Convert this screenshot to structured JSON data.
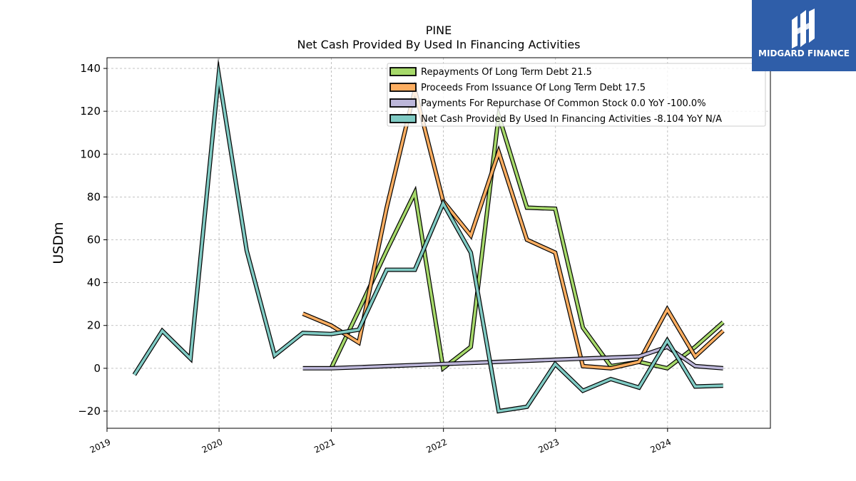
{
  "chart_data": {
    "type": "line",
    "title": "PINE",
    "subtitle": "Net Cash Provided By Used In Financing Activities",
    "xlabel": "",
    "ylabel": "USDm",
    "xlim": [
      "2019-01-01",
      "2024-12-01"
    ],
    "ylim": [
      -28,
      145
    ],
    "x_ticks": [
      "2019",
      "2020",
      "2021",
      "2022",
      "2023",
      "2024"
    ],
    "y_ticks": [
      -20,
      0,
      20,
      40,
      60,
      80,
      100,
      120,
      140
    ],
    "grid": true,
    "legend_position": "top-right",
    "series": [
      {
        "name": "Repayments Of Long Term Debt",
        "legend_label": "Repayments Of Long Term Debt  21.5",
        "color": "#a6d96a",
        "points": [
          [
            "2020-12-31",
            0
          ],
          [
            "2021-03-31",
            27
          ],
          [
            "2021-06-30",
            55
          ],
          [
            "2021-09-30",
            82
          ],
          [
            "2021-12-31",
            0
          ],
          [
            "2022-03-31",
            10
          ],
          [
            "2022-06-30",
            118
          ],
          [
            "2022-09-30",
            75
          ],
          [
            "2022-12-31",
            74.5
          ],
          [
            "2023-03-31",
            19
          ],
          [
            "2023-06-30",
            1
          ],
          [
            "2023-09-30",
            3
          ],
          [
            "2023-12-31",
            0
          ],
          [
            "2024-03-31",
            10
          ],
          [
            "2024-06-30",
            21.5
          ]
        ]
      },
      {
        "name": "Proceeds From Issuance Of Long Term Debt",
        "legend_label": "Proceeds From Issuance Of Long Term Debt  17.5",
        "color": "#fdae61",
        "points": [
          [
            "2020-09-30",
            25.5
          ],
          [
            "2020-12-31",
            20
          ],
          [
            "2021-03-31",
            12
          ],
          [
            "2021-06-30",
            75
          ],
          [
            "2021-09-30",
            130
          ],
          [
            "2021-12-31",
            78
          ],
          [
            "2022-03-31",
            62
          ],
          [
            "2022-06-30",
            101
          ],
          [
            "2022-09-30",
            60
          ],
          [
            "2022-12-31",
            54
          ],
          [
            "2023-03-31",
            1
          ],
          [
            "2023-06-30",
            0
          ],
          [
            "2023-09-30",
            3
          ],
          [
            "2023-12-31",
            27.5
          ],
          [
            "2024-03-31",
            5.5
          ],
          [
            "2024-06-30",
            17.5
          ]
        ]
      },
      {
        "name": "Payments For Repurchase Of Common Stock",
        "legend_label": "Payments For Repurchase Of Common Stock  0.0 YoY -100.0%",
        "color": "#bcb6d9",
        "points": [
          [
            "2020-09-30",
            0
          ],
          [
            "2020-12-31",
            0
          ],
          [
            "2023-09-30",
            5.5
          ],
          [
            "2023-12-31",
            10
          ],
          [
            "2024-03-31",
            1
          ],
          [
            "2024-06-30",
            0
          ]
        ]
      },
      {
        "name": "Net Cash Provided By Used In Financing Activities",
        "legend_label": "Net Cash Provided By Used In Financing Activities  -8.104 YoY N/A",
        "color": "#80cbc4",
        "points": [
          [
            "2019-03-31",
            -3
          ],
          [
            "2019-06-30",
            17.5
          ],
          [
            "2019-09-30",
            4.5
          ],
          [
            "2019-12-31",
            137
          ],
          [
            "2020-03-31",
            55
          ],
          [
            "2020-06-30",
            6
          ],
          [
            "2020-09-30",
            16.5
          ],
          [
            "2020-12-31",
            16
          ],
          [
            "2021-03-31",
            18
          ],
          [
            "2021-06-30",
            46
          ],
          [
            "2021-09-30",
            46
          ],
          [
            "2021-12-31",
            77
          ],
          [
            "2022-03-31",
            54
          ],
          [
            "2022-06-30",
            -20
          ],
          [
            "2022-09-30",
            -18
          ],
          [
            "2022-12-31",
            2
          ],
          [
            "2023-03-31",
            -10.5
          ],
          [
            "2023-06-30",
            -5
          ],
          [
            "2023-09-30",
            -9
          ],
          [
            "2023-12-31",
            13
          ],
          [
            "2024-03-31",
            -8.5
          ],
          [
            "2024-06-30",
            -8.104
          ]
        ]
      }
    ]
  },
  "logo": {
    "text": "MIDGARD FINANCE",
    "background": "#2f5ea9",
    "icon": "midgard-monogram-icon"
  }
}
